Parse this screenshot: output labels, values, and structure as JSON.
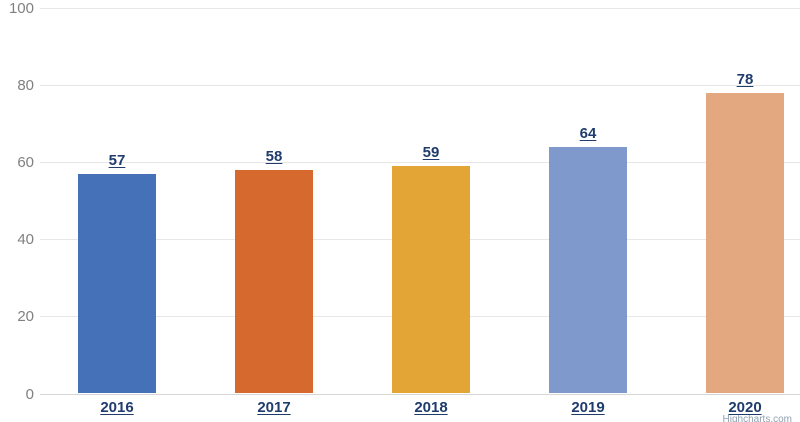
{
  "chart_data": {
    "type": "bar",
    "title": "",
    "xlabel": "",
    "ylabel": "",
    "categories": [
      "2016",
      "2017",
      "2018",
      "2019",
      "2020"
    ],
    "values": [
      57,
      58,
      59,
      64,
      78
    ],
    "colors": [
      "#4571B8",
      "#D6692E",
      "#E3A636",
      "#8099CC",
      "#E3A87F"
    ],
    "yticks": [
      0,
      20,
      40,
      60,
      80,
      100
    ],
    "ylim": [
      0,
      100
    ],
    "grid": true,
    "legend": "none",
    "data_labels": true,
    "label_color": "#1F3C6D",
    "axis_label_color": "#808080",
    "gridline_color": "#E7E7E7"
  },
  "credit": {
    "label": "Highcharts.com"
  }
}
